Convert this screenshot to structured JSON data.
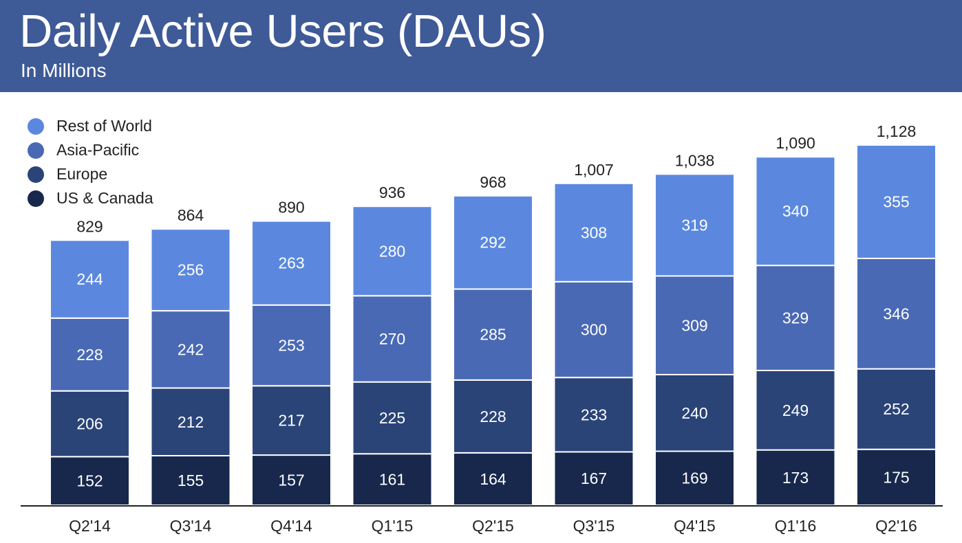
{
  "header": {
    "title": "Daily Active Users (DAUs)",
    "subtitle": "In Millions"
  },
  "colors": {
    "header_bg": "#3e5a97",
    "rest_of_world": "#5b88de",
    "asia_pacific": "#4a69b4",
    "europe": "#2a4478",
    "us_canada": "#17284c"
  },
  "chart_data": {
    "type": "bar",
    "stacked": true,
    "title": "Daily Active Users (DAUs)",
    "subtitle": "In Millions",
    "xlabel": "",
    "ylabel": "",
    "grid": false,
    "legend_position": "top-left",
    "categories": [
      "Q2'14",
      "Q3'14",
      "Q4'14",
      "Q1'15",
      "Q2'15",
      "Q3'15",
      "Q4'15",
      "Q1'16",
      "Q2'16"
    ],
    "series": [
      {
        "name": "US & Canada",
        "color": "#17284c",
        "values": [
          152,
          155,
          157,
          161,
          164,
          167,
          169,
          173,
          175
        ]
      },
      {
        "name": "Europe",
        "color": "#2a4478",
        "values": [
          206,
          212,
          217,
          225,
          228,
          233,
          240,
          249,
          252
        ]
      },
      {
        "name": "Asia-Pacific",
        "color": "#4a69b4",
        "values": [
          228,
          242,
          253,
          270,
          285,
          300,
          309,
          329,
          346
        ]
      },
      {
        "name": "Rest of World",
        "color": "#5b88de",
        "values": [
          244,
          256,
          263,
          280,
          292,
          308,
          319,
          340,
          355
        ]
      }
    ],
    "totals": [
      "829",
      "864",
      "890",
      "936",
      "968",
      "1,007",
      "1,038",
      "1,090",
      "1,128"
    ],
    "ylim": [
      0,
      1128
    ]
  }
}
